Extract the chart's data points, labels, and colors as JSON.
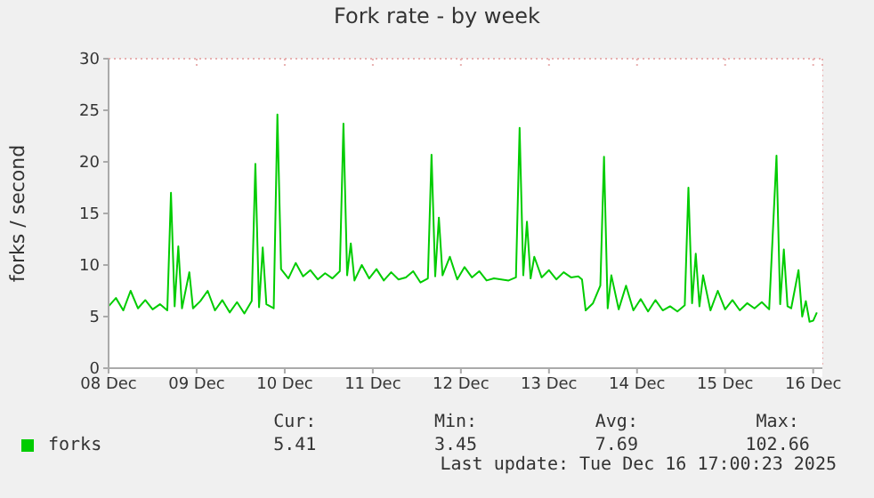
{
  "chart_data": {
    "type": "line",
    "title": "Fork rate - by week",
    "ylabel": "forks / second",
    "xlim": [
      "2025-12-08T12:00",
      "2025-12-16T14:30"
    ],
    "xticks": [
      {
        "value": "2025-12-08T12:00",
        "label": "08 Dec"
      },
      {
        "value": "2025-12-09T12:00",
        "label": "09 Dec"
      },
      {
        "value": "2025-12-10T12:00",
        "label": "10 Dec"
      },
      {
        "value": "2025-12-11T12:00",
        "label": "11 Dec"
      },
      {
        "value": "2025-12-12T12:00",
        "label": "12 Dec"
      },
      {
        "value": "2025-12-13T12:00",
        "label": "13 Dec"
      },
      {
        "value": "2025-12-14T12:00",
        "label": "14 Dec"
      },
      {
        "value": "2025-12-15T12:00",
        "label": "15 Dec"
      },
      {
        "value": "2025-12-16T12:00",
        "label": "16 Dec"
      }
    ],
    "ylim": [
      0,
      30
    ],
    "yticks": [
      0,
      5,
      10,
      15,
      20,
      25,
      30
    ],
    "grid": true,
    "legend": "bottom",
    "marker": "none",
    "line_style": "solid",
    "x": [
      "2025-12-08T12:00",
      "2025-12-08T14:00",
      "2025-12-08T16:00",
      "2025-12-08T18:00",
      "2025-12-08T20:00",
      "2025-12-08T22:00",
      "2025-12-09T00:00",
      "2025-12-09T02:00",
      "2025-12-09T04:00",
      "2025-12-09T05:00",
      "2025-12-09T06:00",
      "2025-12-09T07:00",
      "2025-12-09T08:00",
      "2025-12-09T10:00",
      "2025-12-09T11:00",
      "2025-12-09T13:00",
      "2025-12-09T15:00",
      "2025-12-09T17:00",
      "2025-12-09T19:00",
      "2025-12-09T21:00",
      "2025-12-09T23:00",
      "2025-12-10T01:00",
      "2025-12-10T03:00",
      "2025-12-10T04:00",
      "2025-12-10T05:00",
      "2025-12-10T06:00",
      "2025-12-10T07:00",
      "2025-12-10T09:00",
      "2025-12-10T10:00",
      "2025-12-10T11:00",
      "2025-12-10T13:00",
      "2025-12-10T15:00",
      "2025-12-10T17:00",
      "2025-12-10T19:00",
      "2025-12-10T21:00",
      "2025-12-10T23:00",
      "2025-12-11T01:00",
      "2025-12-11T03:00",
      "2025-12-11T04:00",
      "2025-12-11T05:00",
      "2025-12-11T06:00",
      "2025-12-11T07:00",
      "2025-12-11T09:00",
      "2025-12-11T11:00",
      "2025-12-11T13:00",
      "2025-12-11T15:00",
      "2025-12-11T17:00",
      "2025-12-11T19:00",
      "2025-12-11T21:00",
      "2025-12-11T23:00",
      "2025-12-12T01:00",
      "2025-12-12T03:00",
      "2025-12-12T04:00",
      "2025-12-12T05:00",
      "2025-12-12T06:00",
      "2025-12-12T07:00",
      "2025-12-12T09:00",
      "2025-12-12T11:00",
      "2025-12-12T13:00",
      "2025-12-12T15:00",
      "2025-12-12T17:00",
      "2025-12-12T19:00",
      "2025-12-12T21:00",
      "2025-12-12T23:00",
      "2025-12-13T01:00",
      "2025-12-13T03:00",
      "2025-12-13T04:00",
      "2025-12-13T05:00",
      "2025-12-13T06:00",
      "2025-12-13T07:00",
      "2025-12-13T08:00",
      "2025-12-13T10:00",
      "2025-12-13T12:00",
      "2025-12-13T14:00",
      "2025-12-13T16:00",
      "2025-12-13T18:00",
      "2025-12-13T20:00",
      "2025-12-13T21:00",
      "2025-12-13T22:00",
      "2025-12-14T00:00",
      "2025-12-14T02:00",
      "2025-12-14T03:00",
      "2025-12-14T04:00",
      "2025-12-14T05:00",
      "2025-12-14T07:00",
      "2025-12-14T09:00",
      "2025-12-14T11:00",
      "2025-12-14T13:00",
      "2025-12-14T15:00",
      "2025-12-14T17:00",
      "2025-12-14T19:00",
      "2025-12-14T21:00",
      "2025-12-14T23:00",
      "2025-12-15T01:00",
      "2025-12-15T02:00",
      "2025-12-15T03:00",
      "2025-12-15T04:00",
      "2025-12-15T05:00",
      "2025-12-15T06:00",
      "2025-12-15T08:00",
      "2025-12-15T10:00",
      "2025-12-15T12:00",
      "2025-12-15T14:00",
      "2025-12-15T16:00",
      "2025-12-15T18:00",
      "2025-12-15T20:00",
      "2025-12-15T22:00",
      "2025-12-16T00:00",
      "2025-12-16T02:00",
      "2025-12-16T03:00",
      "2025-12-16T04:00",
      "2025-12-16T05:00",
      "2025-12-16T06:00",
      "2025-12-16T08:00",
      "2025-12-16T09:00",
      "2025-12-16T10:00",
      "2025-12-16T11:00",
      "2025-12-16T12:00",
      "2025-12-16T13:00"
    ],
    "series": [
      {
        "name": "forks",
        "color": "#00cc00",
        "values": [
          6,
          6.8,
          5.6,
          7.5,
          5.8,
          6.6,
          5.7,
          6.2,
          5.6,
          17,
          6,
          11.8,
          5.8,
          9.3,
          5.8,
          6.5,
          7.5,
          5.6,
          6.6,
          5.4,
          6.4,
          5.3,
          6.5,
          19.8,
          5.9,
          11.7,
          6.2,
          5.8,
          24.6,
          9.6,
          8.7,
          10.2,
          8.9,
          9.5,
          8.6,
          9.2,
          8.7,
          9.4,
          23.7,
          9,
          12.1,
          8.5,
          10,
          8.7,
          9.6,
          8.5,
          9.3,
          8.6,
          8.8,
          9.4,
          8.3,
          8.7,
          20.7,
          8.9,
          14.6,
          9,
          10.8,
          8.6,
          9.8,
          8.8,
          9.4,
          8.5,
          8.7,
          8.6,
          8.5,
          8.8,
          23.3,
          9,
          14.2,
          8.7,
          10.8,
          8.8,
          9.5,
          8.6,
          9.3,
          8.8,
          8.9,
          8.6,
          5.6,
          6.3,
          8,
          20.5,
          5.8,
          9,
          5.7,
          8,
          5.6,
          6.7,
          5.5,
          6.6,
          5.6,
          6,
          5.5,
          6.1,
          17.5,
          6.3,
          11.1,
          6,
          9,
          5.6,
          7.5,
          5.7,
          6.6,
          5.6,
          6.3,
          5.8,
          6.4,
          5.7,
          20.6,
          6.2,
          11.5,
          6,
          5.8,
          9.5,
          5,
          6.5,
          4.5,
          4.6,
          5.4
        ]
      }
    ],
    "annotations": [
      "Cur:",
      "Min:",
      "Avg:",
      "Max:",
      "5.41",
      "3.45",
      "7.69",
      "102.66",
      "Last update: Tue Dec 16 17:00:23 2025"
    ]
  }
}
